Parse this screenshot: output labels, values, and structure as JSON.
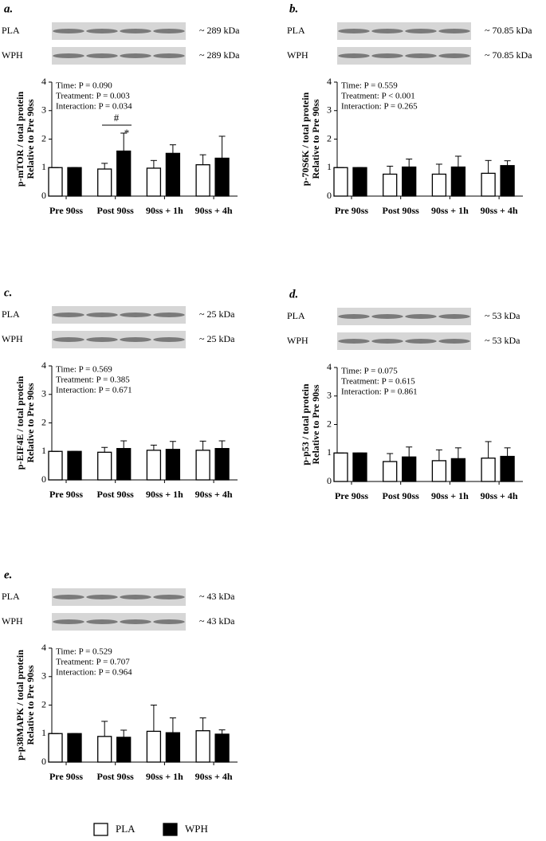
{
  "chart_data": [
    {
      "type": "bar",
      "panel": "a.",
      "blot_labels": [
        "~ 289 kDa",
        "~ 289 kDa"
      ],
      "ylabel": [
        "p-mTOR / total protein",
        "Relative to Pre 90ss"
      ],
      "stats": [
        "Time: P = 0.090",
        "Treatment: P = 0.003",
        "Interaction: P = 0.034"
      ],
      "annotations": [
        "#",
        "*"
      ],
      "categories": [
        "Pre 90ss",
        "Post 90ss",
        "90ss + 1h",
        "90ss + 4h"
      ],
      "series": [
        {
          "name": "PLA",
          "color": "#ffffff",
          "values": [
            1,
            0.95,
            0.98,
            1.1
          ],
          "errors": [
            0,
            0.2,
            0.27,
            0.35
          ]
        },
        {
          "name": "WPH",
          "color": "#000000",
          "values": [
            1,
            1.58,
            1.5,
            1.33
          ],
          "errors": [
            0,
            0.63,
            0.3,
            0.77
          ]
        }
      ],
      "ylim": [
        0,
        4
      ],
      "yticks": [
        0,
        1,
        2,
        3,
        4
      ]
    },
    {
      "type": "bar",
      "panel": "b.",
      "blot_labels": [
        "~ 70.85 kDa",
        "~ 70.85 kDa"
      ],
      "ylabel": [
        "p-70S6K / total protein",
        "Relative to Pre 90ss"
      ],
      "stats": [
        "Time: P = 0.559",
        "Treatment: P < 0.001",
        "Interaction: P = 0.265"
      ],
      "categories": [
        "Pre 90ss",
        "Post 90ss",
        "90ss + 1h",
        "90ss + 4h"
      ],
      "series": [
        {
          "name": "PLA",
          "color": "#ffffff",
          "values": [
            1,
            0.77,
            0.77,
            0.8
          ],
          "errors": [
            0,
            0.28,
            0.35,
            0.45
          ]
        },
        {
          "name": "WPH",
          "color": "#000000",
          "values": [
            1,
            1.02,
            1.02,
            1.07
          ],
          "errors": [
            0,
            0.28,
            0.38,
            0.17
          ]
        }
      ],
      "ylim": [
        0,
        4
      ],
      "yticks": [
        0,
        1,
        2,
        3,
        4
      ]
    },
    {
      "type": "bar",
      "panel": "c.",
      "blot_labels": [
        "~ 25 kDa",
        "~ 25 kDa"
      ],
      "ylabel": [
        "p-EIF4E / total protein",
        "Relative to Pre 90ss"
      ],
      "stats": [
        "Time: P = 0.569",
        "Treatment: P = 0.385",
        "Interaction: P = 0.671"
      ],
      "categories": [
        "Pre 90ss",
        "Post 90ss",
        "90ss + 1h",
        "90ss + 4h"
      ],
      "series": [
        {
          "name": "PLA",
          "color": "#ffffff",
          "values": [
            1,
            0.97,
            1.04,
            1.04
          ],
          "errors": [
            0,
            0.17,
            0.18,
            0.32
          ]
        },
        {
          "name": "WPH",
          "color": "#000000",
          "values": [
            1,
            1.1,
            1.07,
            1.1
          ],
          "errors": [
            0,
            0.27,
            0.28,
            0.27
          ]
        }
      ],
      "ylim": [
        0,
        4
      ],
      "yticks": [
        0,
        1,
        2,
        3,
        4
      ]
    },
    {
      "type": "bar",
      "panel": "d.",
      "blot_labels": [
        "~ 53 kDa",
        "~ 53 kDa"
      ],
      "ylabel": [
        "p-p53 / total protein",
        "Relative to Pre 90ss"
      ],
      "stats": [
        "Time: P = 0.075",
        "Treatment: P = 0.615",
        "Interaction: P = 0.861"
      ],
      "categories": [
        "Pre 90ss",
        "Post 90ss",
        "90ss + 1h",
        "90ss + 4h"
      ],
      "series": [
        {
          "name": "PLA",
          "color": "#ffffff",
          "values": [
            1,
            0.7,
            0.73,
            0.82
          ],
          "errors": [
            0,
            0.28,
            0.38,
            0.58
          ]
        },
        {
          "name": "WPH",
          "color": "#000000",
          "values": [
            1,
            0.86,
            0.8,
            0.88
          ],
          "errors": [
            0,
            0.35,
            0.38,
            0.3
          ]
        }
      ],
      "ylim": [
        0,
        4
      ],
      "yticks": [
        0,
        1,
        2,
        3,
        4
      ]
    },
    {
      "type": "bar",
      "panel": "e.",
      "blot_labels": [
        "~ 43 kDa",
        "~ 43 kDa"
      ],
      "ylabel": [
        "p-p38MAPK / total protein",
        "Relative to Pre 90ss"
      ],
      "stats": [
        "Time: P = 0.529",
        "Treatment: P = 0.707",
        "Interaction: P = 0.964"
      ],
      "categories": [
        "Pre 90ss",
        "Post 90ss",
        "90ss + 1h",
        "90ss + 4h"
      ],
      "series": [
        {
          "name": "PLA",
          "color": "#ffffff",
          "values": [
            1,
            0.9,
            1.08,
            1.1
          ],
          "errors": [
            0,
            0.53,
            0.92,
            0.45
          ]
        },
        {
          "name": "WPH",
          "color": "#000000",
          "values": [
            1,
            0.87,
            1.03,
            0.98
          ],
          "errors": [
            0,
            0.25,
            0.52,
            0.15
          ]
        }
      ],
      "ylim": [
        0,
        4
      ],
      "yticks": [
        0,
        1,
        2,
        3,
        4
      ]
    }
  ]
}
